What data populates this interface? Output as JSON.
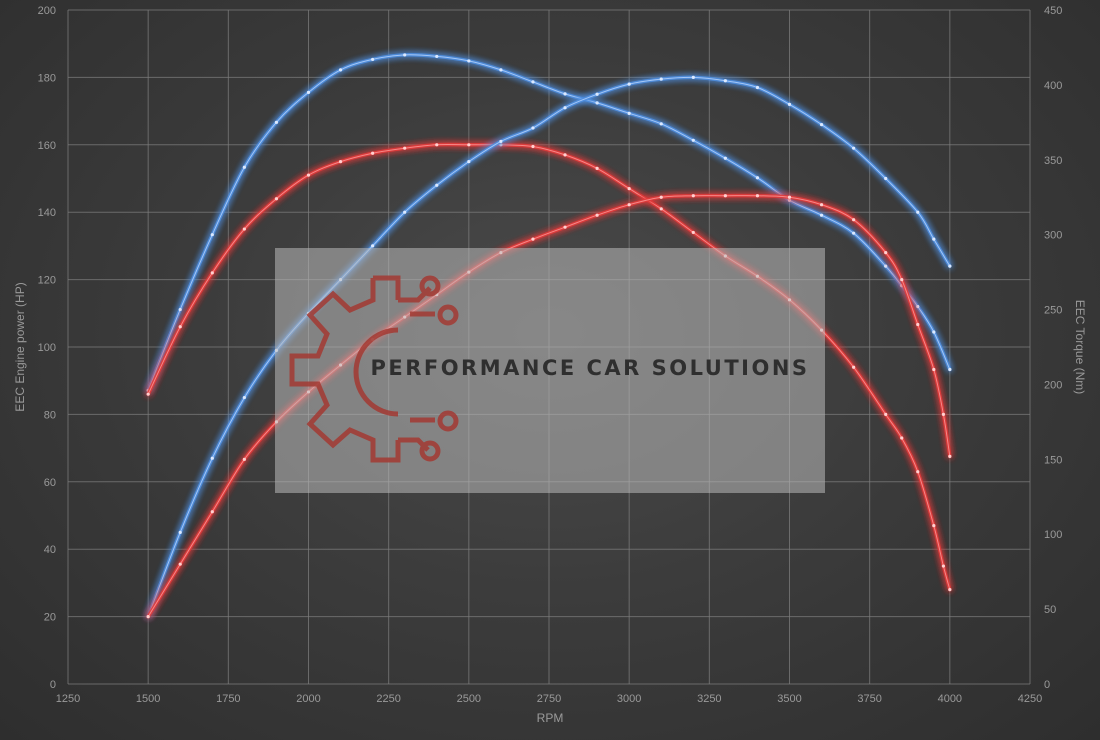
{
  "chart_data": {
    "type": "line",
    "xlabel": "RPM",
    "ylabel_left": "EEC Engine power (HP)",
    "ylabel_right": "EEC Torque (Nm)",
    "xlim": [
      1250,
      4250
    ],
    "ylim_left": [
      0,
      200
    ],
    "ylim_right": [
      0,
      450
    ],
    "x_ticks": [
      1250,
      1500,
      1750,
      2000,
      2250,
      2500,
      2750,
      3000,
      3250,
      3500,
      3750,
      4000,
      4250
    ],
    "y_left_ticks": [
      0,
      20,
      40,
      60,
      80,
      100,
      120,
      140,
      160,
      180,
      200
    ],
    "y_right_ticks": [
      0,
      50,
      100,
      150,
      200,
      250,
      300,
      350,
      400,
      450
    ],
    "grid": true,
    "watermark": "PERFORMANCE CAR SOLUTIONS",
    "series": [
      {
        "axis": "right",
        "color": "#4f8fe0",
        "x": [
          1500,
          1600,
          1700,
          1800,
          1900,
          2000,
          2100,
          2200,
          2300,
          2400,
          2500,
          2600,
          2700,
          2800,
          2900,
          3000,
          3100,
          3200,
          3300,
          3400,
          3500,
          3600,
          3700,
          3800,
          3850,
          3900,
          3950,
          4000
        ],
        "values": [
          196,
          250,
          300,
          345,
          375,
          395,
          410,
          417,
          420,
          419,
          416,
          410,
          402,
          394,
          388,
          381,
          374,
          363,
          351,
          338,
          323,
          313,
          301,
          279,
          266,
          252,
          235,
          210
        ]
      },
      {
        "axis": "left",
        "color": "#e23a3a",
        "x": [
          1500,
          1600,
          1700,
          1800,
          1900,
          2000,
          2100,
          2200,
          2300,
          2400,
          2500,
          2600,
          2700,
          2800,
          2900,
          3000,
          3100,
          3200,
          3300,
          3400,
          3500,
          3600,
          3700,
          3800,
          3850,
          3900,
          3950,
          3980,
          4000
        ],
        "values": [
          86,
          106,
          122,
          135,
          144,
          151,
          155,
          157.5,
          159,
          160,
          160,
          160,
          159.5,
          157,
          153,
          147,
          141,
          134,
          127,
          121,
          114,
          105,
          94,
          80,
          73,
          63,
          47,
          35,
          28
        ]
      },
      {
        "axis": "left",
        "color": "#4f8fe0",
        "x": [
          1500,
          1600,
          1700,
          1800,
          1900,
          2000,
          2100,
          2200,
          2300,
          2400,
          2500,
          2600,
          2700,
          2800,
          2900,
          3000,
          3100,
          3200,
          3300,
          3400,
          3500,
          3600,
          3700,
          3800,
          3900,
          3950,
          4000
        ],
        "values": [
          20,
          45,
          67,
          85,
          99,
          110,
          120,
          130,
          140,
          148,
          155,
          161,
          165,
          171,
          175,
          178,
          179.5,
          180,
          179,
          177,
          172,
          166,
          159,
          150,
          140,
          132,
          124
        ]
      },
      {
        "axis": "right",
        "color": "#e23a3a",
        "x": [
          1500,
          1600,
          1700,
          1800,
          1900,
          2000,
          2100,
          2200,
          2300,
          2400,
          2500,
          2600,
          2700,
          2800,
          2900,
          3000,
          3100,
          3200,
          3300,
          3400,
          3500,
          3600,
          3700,
          3800,
          3850,
          3900,
          3950,
          3980,
          4000
        ],
        "values": [
          45,
          80,
          115,
          150,
          175,
          195,
          213,
          230,
          245,
          260,
          275,
          288,
          297,
          305,
          313,
          320,
          325,
          326,
          326,
          326,
          325,
          320,
          310,
          288,
          270,
          240,
          210,
          180,
          152
        ]
      }
    ]
  }
}
